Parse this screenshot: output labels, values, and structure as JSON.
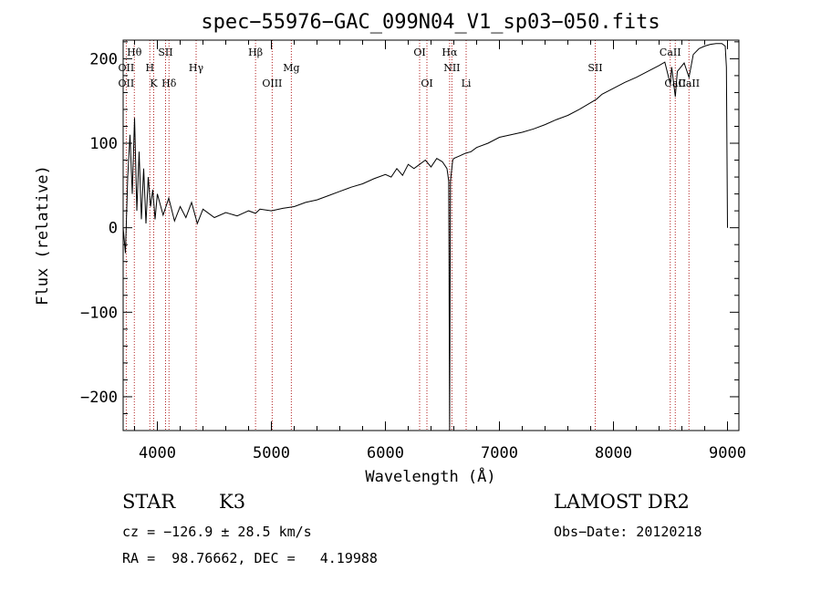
{
  "chart_data": {
    "type": "line",
    "title": "spec−55976−GAC_099N04_V1_sp03−050.fits",
    "xlabel": "Wavelength (Å)",
    "ylabel": "Flux (relative)",
    "xlim": [
      3700,
      9100
    ],
    "ylim": [
      -240,
      222
    ],
    "xticks": [
      4000,
      5000,
      6000,
      7000,
      8000,
      9000
    ],
    "yticks": [
      -200,
      -100,
      0,
      100,
      200
    ],
    "grid": false,
    "series": [
      {
        "x": [
          3700,
          3720,
          3740,
          3760,
          3780,
          3800,
          3820,
          3840,
          3860,
          3880,
          3900,
          3920,
          3940,
          3960,
          3980,
          4000,
          4050,
          4100,
          4150,
          4200,
          4250,
          4300,
          4350,
          4400,
          4500,
          4600,
          4700,
          4800,
          4861,
          4900,
          5000,
          5100,
          5200,
          5300,
          5400,
          5500,
          5600,
          5700,
          5800,
          5900,
          6000,
          6050,
          6100,
          6150,
          6200,
          6250,
          6300,
          6350,
          6400,
          6450,
          6500,
          6540,
          6555,
          6563,
          6570,
          6590,
          6600,
          6650,
          6700,
          6750,
          6800,
          6900,
          7000,
          7100,
          7200,
          7300,
          7400,
          7500,
          7600,
          7700,
          7800,
          7850,
          7900,
          8000,
          8100,
          8200,
          8300,
          8400,
          8450,
          8498,
          8510,
          8542,
          8560,
          8620,
          8662,
          8700,
          8750,
          8800,
          8850,
          8900,
          8950,
          8980,
          8990,
          9000
        ],
        "values": [
          0,
          -30,
          60,
          110,
          40,
          130,
          20,
          90,
          10,
          70,
          5,
          60,
          25,
          45,
          10,
          40,
          15,
          35,
          8,
          25,
          12,
          30,
          5,
          22,
          12,
          18,
          14,
          20,
          17,
          22,
          20,
          23,
          25,
          30,
          33,
          38,
          43,
          48,
          52,
          58,
          63,
          60,
          70,
          62,
          75,
          70,
          75,
          80,
          72,
          82,
          78,
          70,
          55,
          -240,
          55,
          80,
          82,
          85,
          88,
          90,
          95,
          100,
          107,
          110,
          113,
          117,
          122,
          128,
          133,
          140,
          148,
          152,
          158,
          165,
          172,
          178,
          185,
          192,
          196,
          170,
          190,
          155,
          185,
          195,
          178,
          205,
          212,
          215,
          217,
          218,
          218,
          215,
          190,
          0
        ]
      }
    ]
  },
  "lines": [
    {
      "name": "OII",
      "x": 3727,
      "row": 2
    },
    {
      "name": "OII",
      "x": 3727,
      "row": 3
    },
    {
      "name": "Hθ",
      "x": 3798,
      "row": 1
    },
    {
      "name": "H",
      "x": 3934,
      "row": 2
    },
    {
      "name": "K",
      "x": 3968,
      "row": 3
    },
    {
      "name": "SII",
      "x": 4072,
      "row": 1
    },
    {
      "name": "Hδ",
      "x": 4102,
      "row": 3
    },
    {
      "name": "Hγ",
      "x": 4340,
      "row": 2
    },
    {
      "name": "Hβ",
      "x": 4861,
      "row": 1
    },
    {
      "name": "OIII",
      "x": 5007,
      "row": 3
    },
    {
      "name": "Mg",
      "x": 5175,
      "row": 2
    },
    {
      "name": "OI",
      "x": 6300,
      "row": 1
    },
    {
      "name": "OI",
      "x": 6364,
      "row": 3
    },
    {
      "name": "Hα",
      "x": 6563,
      "row": 1
    },
    {
      "name": "NII",
      "x": 6583,
      "row": 2
    },
    {
      "name": "Li",
      "x": 6708,
      "row": 3
    },
    {
      "name": "SII",
      "x": 7840,
      "row": 2
    },
    {
      "name": "CaII",
      "x": 8498,
      "row": 1
    },
    {
      "name": "CaII",
      "x": 8542,
      "row": 3
    },
    {
      "name": "CaII",
      "x": 8662,
      "row": 3
    }
  ],
  "info": {
    "class_label": "STAR",
    "subclass": "K3",
    "survey": "LAMOST DR2",
    "cz": "cz = −126.9 ± 28.5 km/s",
    "obs_date": "Obs−Date: 20120218",
    "radec": "RA =  98.76662, DEC =   4.19988"
  }
}
